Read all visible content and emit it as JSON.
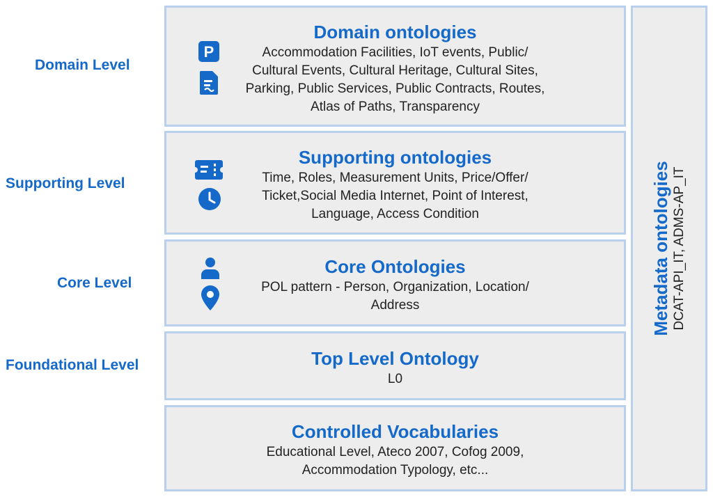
{
  "levels": {
    "domain": "Domain Level",
    "supporting": "Supporting Level",
    "core": "Core Level",
    "foundational": "Foundational Level"
  },
  "boxes": {
    "domain": {
      "title": "Domain ontologies",
      "lines": [
        "Accommodation Facilities, IoT events, Public/",
        "Cultural Events, Cultural Heritage, Cultural Sites,",
        "Parking, Public Services, Public Contracts, Routes,",
        "Atlas of Paths, Transparency"
      ],
      "icons": [
        "parking-icon",
        "document-icon"
      ]
    },
    "supporting": {
      "title": "Supporting ontologies",
      "lines": [
        "Time, Roles, Measurement Units, Price/Offer/",
        "Ticket,Social Media Internet, Point of Interest,",
        "Language, Access Condition"
      ],
      "icons": [
        "ticket-icon",
        "clock-icon"
      ]
    },
    "core": {
      "title": "Core Ontologies",
      "lines": [
        "POL pattern - Person, Organization, Location/",
        "Address"
      ],
      "icons": [
        "person-icon",
        "location-pin-icon"
      ]
    },
    "top": {
      "title": "Top Level Ontology",
      "lines": [
        "L0"
      ]
    },
    "vocab": {
      "title": "Controlled Vocabularies",
      "lines": [
        "Educational Level, Ateco 2007, Cofog 2009,",
        "Accommodation Typology, etc..."
      ]
    }
  },
  "metadata": {
    "title": "Metadata ontologies",
    "body": "DCAT-API_IT, ADMS-AP_IT"
  },
  "colors": {
    "accent": "#1469c9",
    "box_fill": "#ededed",
    "box_border": "#b8d0ee"
  }
}
